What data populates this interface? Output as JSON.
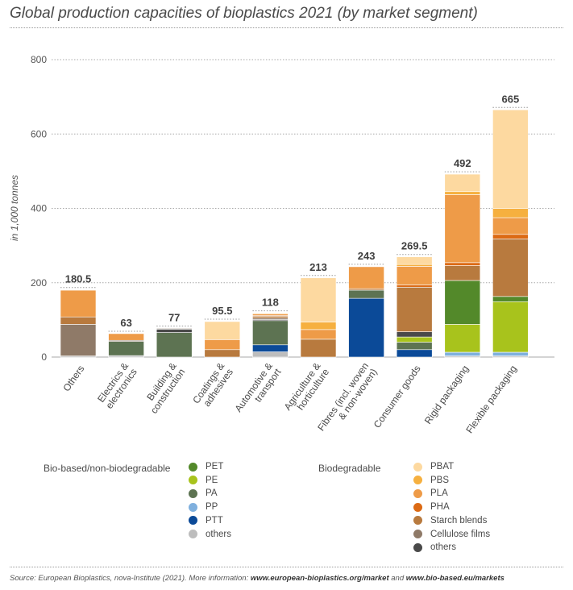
{
  "title": "Global production capacities of bioplastics 2021 (by market segment)",
  "chart_data": {
    "type": "bar",
    "stacked": true,
    "title": "Global production capacities of bioplastics 2021 (by market segment)",
    "ylabel": "in 1,000 tonnes",
    "xlabel": "",
    "ylim": [
      0,
      800
    ],
    "yticks": [
      0,
      200,
      400,
      600,
      800
    ],
    "grid": true,
    "categories": [
      [
        "Others"
      ],
      [
        "Electrics &",
        "electronics"
      ],
      [
        "Building &",
        "construction"
      ],
      [
        "Coatings &",
        "adhesives"
      ],
      [
        "Automotive &",
        "transport"
      ],
      [
        "Agriculture &",
        "horticulture"
      ],
      [
        "Fibres (incl. woven",
        "& non-woven)"
      ],
      [
        "Consumer goods"
      ],
      [
        "Rigid packaging"
      ],
      [
        "Flexible packaging"
      ]
    ],
    "totals": [
      "180.5",
      "63",
      "77",
      "95.5",
      "118",
      "213",
      "243",
      "269.5",
      "492",
      "665"
    ],
    "series": [
      {
        "name": "others (bio-based)",
        "color": "#bdbdbd",
        "values": [
          3,
          4,
          0,
          0,
          14,
          0,
          0,
          0,
          3,
          3
        ]
      },
      {
        "name": "PP",
        "color": "#7fb0de",
        "values": [
          0,
          0,
          0,
          0,
          0,
          0,
          0,
          0,
          10,
          10
        ]
      },
      {
        "name": "PTT",
        "color": "#0b4a98",
        "values": [
          0,
          0,
          0,
          0,
          19,
          0,
          158,
          20,
          0,
          0
        ]
      },
      {
        "name": "PA",
        "color": "#5d7352",
        "values": [
          0,
          38,
          66,
          0,
          65,
          0,
          22,
          20,
          0,
          0
        ]
      },
      {
        "name": "PE",
        "color": "#a8c31c",
        "values": [
          0,
          0,
          0,
          0,
          0,
          0,
          0,
          14,
          75,
          136
        ]
      },
      {
        "name": "PET",
        "color": "#53892a",
        "values": [
          0,
          0,
          0,
          0,
          0,
          0,
          0,
          0,
          118,
          14
        ]
      },
      {
        "name": "others (biodegradable)",
        "color": "#4a4a4a",
        "values": [
          0,
          0,
          9,
          0,
          3,
          0,
          0,
          14,
          0,
          0
        ]
      },
      {
        "name": "Cellulose films",
        "color": "#8f7a68",
        "values": [
          85,
          3,
          2,
          0,
          4,
          0,
          0,
          0,
          0,
          0
        ]
      },
      {
        "name": "Starch blends",
        "color": "#b87a3e",
        "values": [
          20,
          0,
          0,
          20,
          5,
          48,
          4,
          120,
          40,
          155
        ]
      },
      {
        "name": "PHA",
        "color": "#dc6a14",
        "values": [
          0,
          0,
          0,
          0,
          2,
          0,
          0,
          6,
          8,
          12
        ]
      },
      {
        "name": "PLA",
        "color": "#ee9b48",
        "values": [
          72,
          18,
          0,
          27,
          4,
          26,
          59,
          50,
          183,
          45
        ]
      },
      {
        "name": "PBS",
        "color": "#f6b03f",
        "values": [
          0,
          0,
          0,
          0,
          2,
          20,
          0,
          5,
          8,
          25
        ]
      },
      {
        "name": "PBAT",
        "color": "#fdd9a0",
        "values": [
          0.5,
          0,
          0,
          48.5,
          0,
          119,
          0,
          20.5,
          47,
          265
        ]
      }
    ]
  },
  "legend": {
    "group1": {
      "title": "Bio-based/non-biodegradable",
      "items": [
        {
          "label": "PET",
          "color": "#53892a"
        },
        {
          "label": "PE",
          "color": "#a8c31c"
        },
        {
          "label": "PA",
          "color": "#5d7352"
        },
        {
          "label": "PP",
          "color": "#7fb0de"
        },
        {
          "label": "PTT",
          "color": "#0b4a98"
        },
        {
          "label": "others",
          "color": "#bdbdbd"
        }
      ]
    },
    "group2": {
      "title": "Biodegradable",
      "items": [
        {
          "label": "PBAT",
          "color": "#fdd9a0"
        },
        {
          "label": "PBS",
          "color": "#f6b03f"
        },
        {
          "label": "PLA",
          "color": "#ee9b48"
        },
        {
          "label": "PHA",
          "color": "#dc6a14"
        },
        {
          "label": "Starch blends",
          "color": "#b87a3e"
        },
        {
          "label": "Cellulose films",
          "color": "#8f7a68"
        },
        {
          "label": "others",
          "color": "#4a4a4a"
        }
      ]
    }
  },
  "source": {
    "prefix": "Source: European Bioplastics, nova-Institute (2021). More information: ",
    "link1": "www.european-bioplastics.org/market",
    "middle": " and ",
    "link2": "www.bio-based.eu/markets"
  }
}
